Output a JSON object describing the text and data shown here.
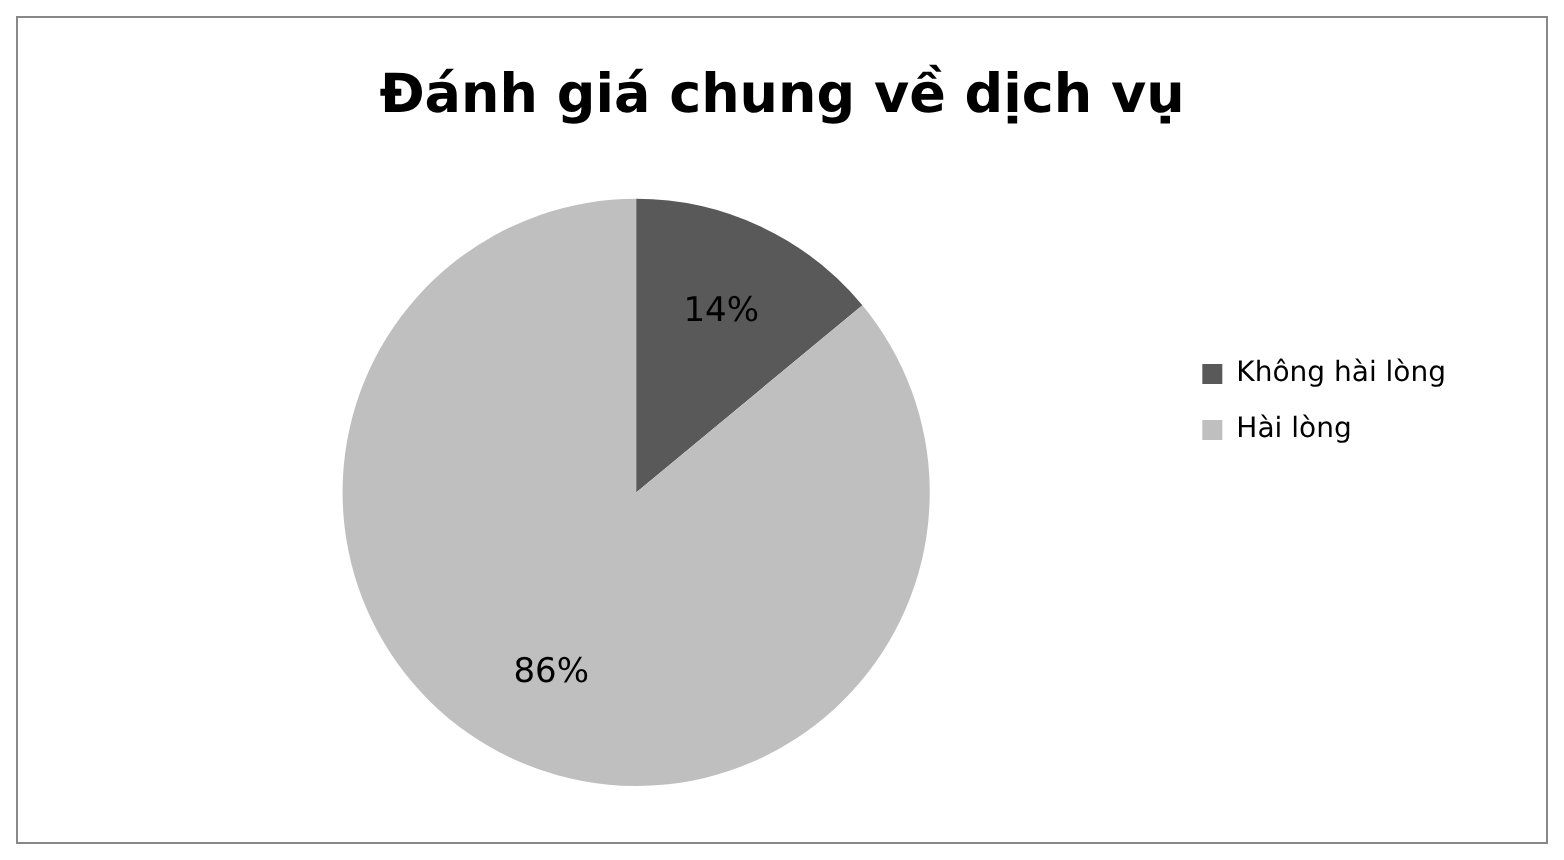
{
  "chart_data": {
    "type": "pie",
    "title": "Đánh giá chung về dịch vụ",
    "categories": [
      "Không hài lòng",
      "Hài lòng"
    ],
    "values": [
      14,
      86
    ],
    "colors": [
      "#595959",
      "#bfbfbf"
    ],
    "value_labels": [
      "14%",
      "86%"
    ],
    "legend": "right"
  }
}
